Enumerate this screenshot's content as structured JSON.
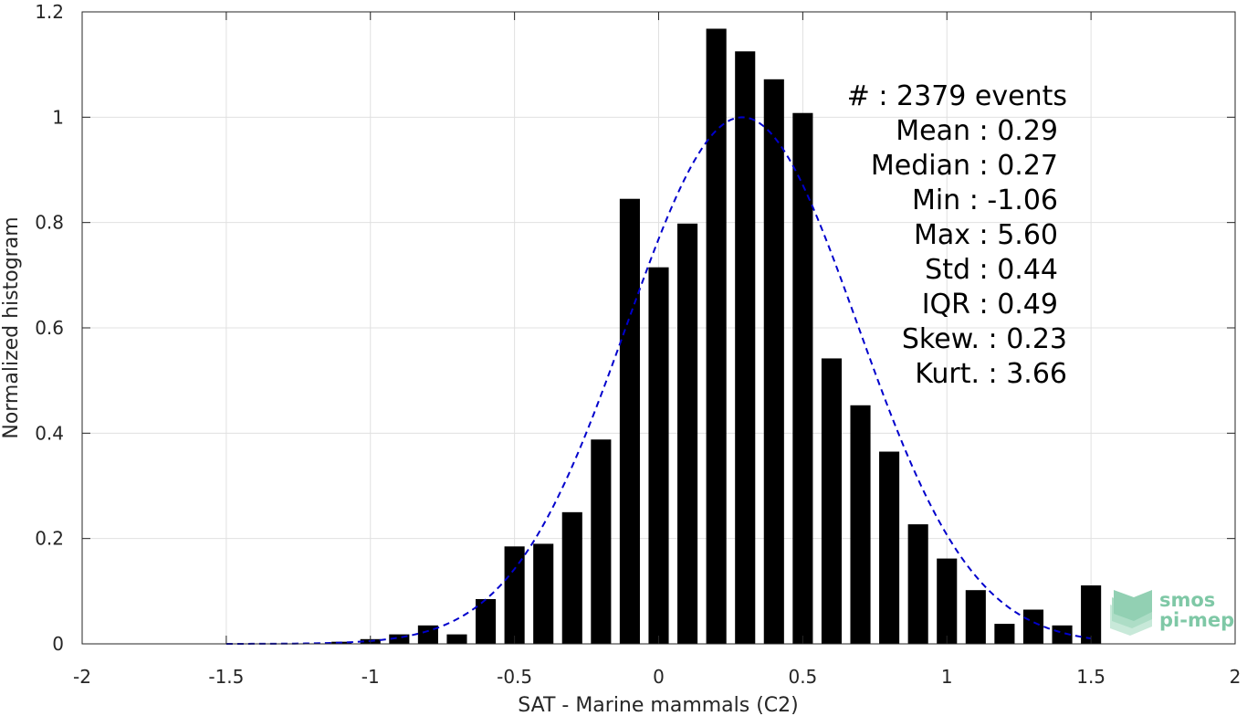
{
  "chart_data": {
    "type": "bar",
    "title": "",
    "xlabel": "SAT - Marine mammals (C2)",
    "ylabel": "Normalized histogram",
    "xlim": [
      -2,
      2
    ],
    "ylim": [
      0,
      1.2
    ],
    "xticks": [
      -2,
      -1.5,
      -1,
      -0.5,
      0,
      0.5,
      1,
      1.5,
      2
    ],
    "xtick_labels": [
      "-2",
      "-1.5",
      "-1",
      "-0.5",
      "0",
      "0.5",
      "1",
      "1.5",
      "2"
    ],
    "yticks": [
      0,
      0.2,
      0.4,
      0.6,
      0.8,
      1,
      1.2
    ],
    "ytick_labels": [
      "0",
      "0.2",
      "0.4",
      "0.6",
      "0.8",
      "1",
      "1.2"
    ],
    "grid": true,
    "bar_width": 0.07,
    "bar_color": "#000000",
    "bins": [
      -1.1,
      -1.0,
      -0.9,
      -0.8,
      -0.7,
      -0.6,
      -0.5,
      -0.4,
      -0.3,
      -0.2,
      -0.1,
      0.0,
      0.1,
      0.2,
      0.3,
      0.4,
      0.5,
      0.6,
      0.7,
      0.8,
      0.9,
      1.0,
      1.1,
      1.2,
      1.3,
      1.4,
      1.5
    ],
    "values": [
      0.004,
      0.009,
      0.018,
      0.035,
      0.018,
      0.085,
      0.185,
      0.19,
      0.25,
      0.388,
      0.845,
      0.715,
      0.798,
      1.168,
      1.125,
      1.072,
      1.008,
      0.542,
      0.453,
      0.365,
      0.227,
      0.162,
      0.102,
      0.038,
      0.065,
      0.035,
      0.111
    ],
    "fit": {
      "type": "normal",
      "mean": 0.29,
      "sigma": 0.4,
      "peak": 1.0,
      "x_range": [
        -1.5,
        1.5
      ],
      "color": "#0000cc",
      "style": "dashed"
    },
    "annotations": {
      "count": "#  : 2379 events",
      "mean": "Mean : 0.29",
      "median": "Median : 0.27",
      "min": "Min : -1.06",
      "max": "Max : 5.60",
      "std": "Std : 0.44",
      "iqr": "IQR : 0.49",
      "skew": "Skew. : 0.23",
      "kurt": "Kurt. : 3.66"
    }
  },
  "logo": {
    "line1": "smos",
    "line2": "pi-mep"
  }
}
